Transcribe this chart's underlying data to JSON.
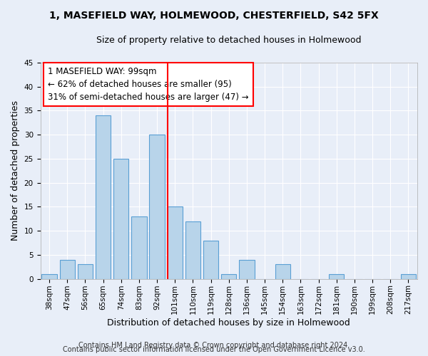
{
  "title1": "1, MASEFIELD WAY, HOLMEWOOD, CHESTERFIELD, S42 5FX",
  "title2": "Size of property relative to detached houses in Holmewood",
  "xlabel": "Distribution of detached houses by size in Holmewood",
  "ylabel": "Number of detached properties",
  "categories": [
    "38sqm",
    "47sqm",
    "56sqm",
    "65sqm",
    "74sqm",
    "83sqm",
    "92sqm",
    "101sqm",
    "110sqm",
    "119sqm",
    "128sqm",
    "136sqm",
    "145sqm",
    "154sqm",
    "163sqm",
    "172sqm",
    "181sqm",
    "190sqm",
    "199sqm",
    "208sqm",
    "217sqm"
  ],
  "values": [
    1,
    4,
    3,
    34,
    25,
    13,
    30,
    15,
    12,
    8,
    1,
    4,
    0,
    3,
    0,
    0,
    1,
    0,
    0,
    0,
    1
  ],
  "bar_color": "#b8d4ea",
  "bar_edge_color": "#5a9fd4",
  "vline_color": "red",
  "vline_x_index": 6.6,
  "ylim": [
    0,
    45
  ],
  "yticks": [
    0,
    5,
    10,
    15,
    20,
    25,
    30,
    35,
    40,
    45
  ],
  "bg_color": "#e8eef8",
  "grid_color": "#ffffff",
  "annotation_line1": "1 MASEFIELD WAY: 99sqm",
  "annotation_line2": "← 62% of detached houses are smaller (95)",
  "annotation_line3": "31% of semi-detached houses are larger (47) →",
  "footer1": "Contains HM Land Registry data © Crown copyright and database right 2024.",
  "footer2": "Contains public sector information licensed under the Open Government Licence v3.0.",
  "title_fontsize": 10,
  "subtitle_fontsize": 9,
  "axis_label_fontsize": 9,
  "tick_fontsize": 7.5,
  "annotation_fontsize": 8.5,
  "footer_fontsize": 7
}
